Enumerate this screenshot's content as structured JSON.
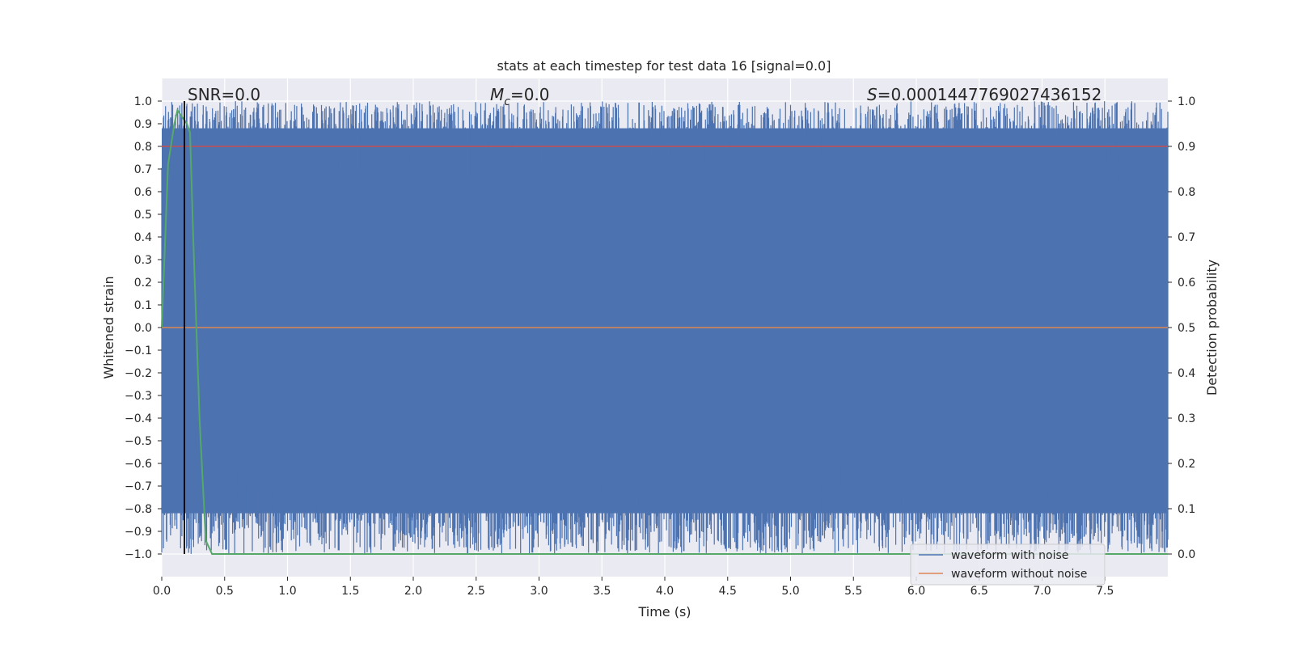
{
  "chart_data": {
    "type": "line",
    "title": "stats at each timestep for test data 16 [signal=0.0]",
    "xlabel": "Time (s)",
    "ylabel_left": "Whitened strain",
    "ylabel_right": "Detection probability",
    "xlim": [
      0.0,
      8.0
    ],
    "ylim_left": [
      -1.1,
      1.1
    ],
    "ylim_right": [
      -0.05,
      1.05
    ],
    "x_ticks": [
      0.0,
      0.5,
      1.0,
      1.5,
      2.0,
      2.5,
      3.0,
      3.5,
      4.0,
      4.5,
      5.0,
      5.5,
      6.0,
      6.5,
      7.0,
      7.5
    ],
    "x_tick_labels": [
      "0.0",
      "0.5",
      "1.0",
      "1.5",
      "2.0",
      "2.5",
      "3.0",
      "3.5",
      "4.0",
      "4.5",
      "5.0",
      "5.5",
      "6.0",
      "6.5",
      "7.0",
      "7.5"
    ],
    "y_left_ticks": [
      1.0,
      0.9,
      0.8,
      0.7,
      0.6,
      0.5,
      0.4,
      0.3,
      0.2,
      0.1,
      0.0,
      -0.1,
      -0.2,
      -0.3,
      -0.4,
      -0.5,
      -0.6,
      -0.7,
      -0.8,
      -0.9,
      -1.0
    ],
    "y_left_tick_labels": [
      "1.0",
      "0.9",
      "0.8",
      "0.7",
      "0.6",
      "0.5",
      "0.4",
      "0.3",
      "0.2",
      "0.1",
      "0.0",
      "−0.1",
      "−0.2",
      "−0.3",
      "−0.4",
      "−0.5",
      "−0.6",
      "−0.7",
      "−0.8",
      "−0.9",
      "−1.0"
    ],
    "y_right_ticks": [
      1.0,
      0.9,
      0.8,
      0.7,
      0.6,
      0.5,
      0.4,
      0.3,
      0.2,
      0.1,
      0.0
    ],
    "y_right_tick_labels": [
      "1.0",
      "0.9",
      "0.8",
      "0.7",
      "0.6",
      "0.5",
      "0.4",
      "0.3",
      "0.2",
      "0.1",
      "0.0"
    ],
    "grid": true,
    "legend": {
      "placement": "lower-right",
      "entries": [
        {
          "label": "waveform with noise",
          "color": "#4c72b0"
        },
        {
          "label": "waveform without noise",
          "color": "#dd8452"
        }
      ]
    },
    "annotations": {
      "snr": "SNR=0.0",
      "mc_symbol": "M",
      "mc_subscript": "c",
      "mc_value": "=0.0",
      "s_symbol": "S",
      "s_value": "=0.0001447769027436152"
    },
    "series": [
      {
        "name": "waveform with noise",
        "axis": "left",
        "color": "#4c72b0",
        "description": "whitened noisy strain, min -1.0 max 1.0",
        "range": [
          -1.0,
          1.0
        ]
      },
      {
        "name": "waveform without noise",
        "axis": "left",
        "color": "#dd8452",
        "values_constant": 0.0
      },
      {
        "name": "detection probability",
        "axis": "right",
        "color": "#55a868",
        "x": [
          0.0,
          0.05,
          0.1,
          0.125,
          0.15,
          0.175,
          0.2,
          0.225,
          0.25,
          0.3,
          0.35,
          0.4,
          8.0
        ],
        "y": [
          0.5,
          0.86,
          0.95,
          0.98,
          0.97,
          0.96,
          0.95,
          0.93,
          0.7,
          0.3,
          0.03,
          0.0,
          0.0
        ]
      },
      {
        "name": "detection threshold",
        "axis": "right",
        "color": "#c44e52",
        "values_constant": 0.9
      },
      {
        "name": "chosen time",
        "axis": "vertical",
        "color": "#000000",
        "x_value": 0.18,
        "y_range": [
          -1.0,
          1.0
        ]
      }
    ]
  }
}
